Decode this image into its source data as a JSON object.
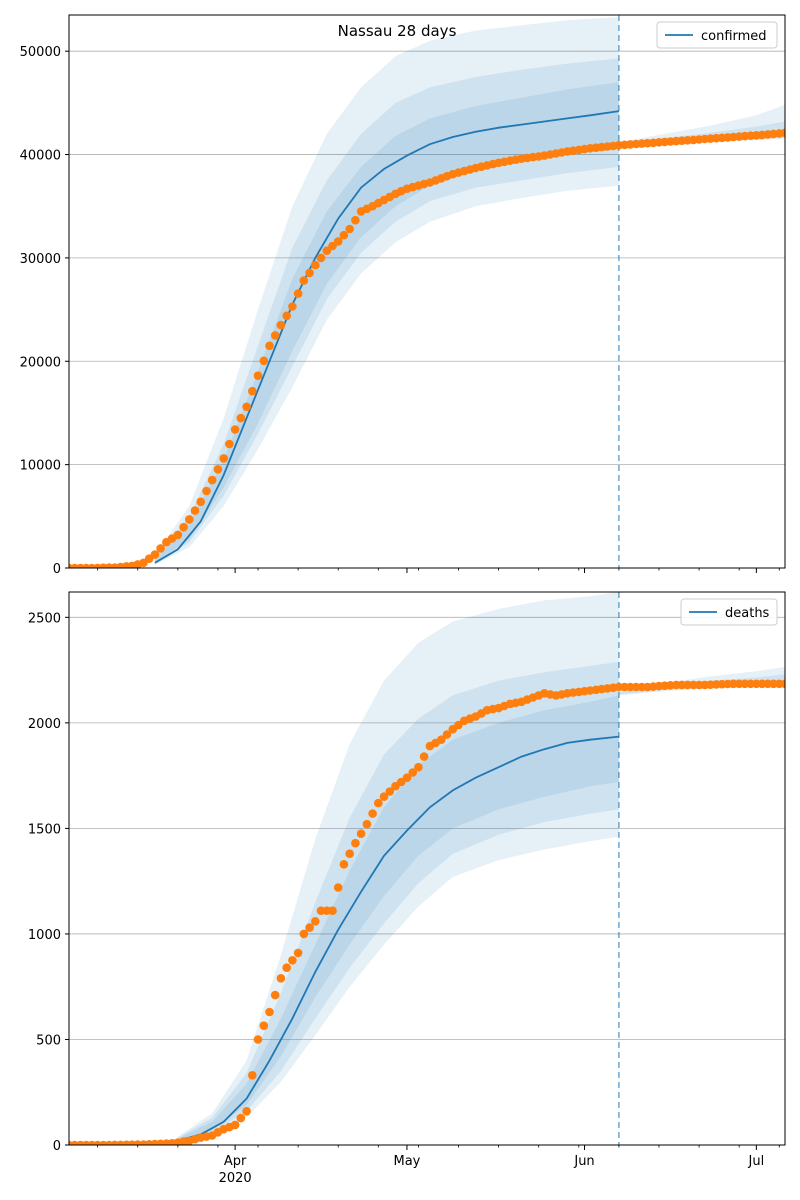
{
  "figure_title": "Nassau 28 days",
  "colors": {
    "model": "#1f77b4",
    "observed": "#ff7f0e",
    "band": "#1f77b4",
    "grid": "#b0b0b0",
    "forecast_line": "#1f77b4"
  },
  "forecast_start": "2020-06-07",
  "chart_data": [
    {
      "type": "line",
      "legend": "confirmed",
      "legend_position": "top-right",
      "grid": "y-only",
      "xlim": [
        "2020-03-03",
        "2020-07-06"
      ],
      "ylim": [
        0,
        53500
      ],
      "y_ticks": [
        0,
        10000,
        20000,
        30000,
        40000,
        50000
      ],
      "x_major_ticks": [
        {
          "date": "2020-04-01",
          "label": "Apr",
          "sublabel": "2020"
        },
        {
          "date": "2020-05-01",
          "label": "May"
        },
        {
          "date": "2020-06-01",
          "label": "Jun"
        },
        {
          "date": "2020-07-01",
          "label": "Jul"
        }
      ],
      "model_median": {
        "x": [
          "2020-03-18",
          "2020-03-22",
          "2020-03-26",
          "2020-03-30",
          "2020-04-03",
          "2020-04-07",
          "2020-04-11",
          "2020-04-15",
          "2020-04-19",
          "2020-04-23",
          "2020-04-27",
          "2020-05-01",
          "2020-05-05",
          "2020-05-09",
          "2020-05-13",
          "2020-05-17",
          "2020-05-21",
          "2020-05-25",
          "2020-05-29",
          "2020-06-02",
          "2020-06-07"
        ],
        "y": [
          500,
          1800,
          4500,
          9000,
          14500,
          20000,
          25500,
          30000,
          33800,
          36800,
          38600,
          39900,
          41000,
          41700,
          42200,
          42600,
          42900,
          43200,
          43500,
          43800,
          44200
        ]
      },
      "bands": [
        {
          "name": "90%",
          "x": [
            "2020-03-18",
            "2020-03-24",
            "2020-03-30",
            "2020-04-05",
            "2020-04-11",
            "2020-04-17",
            "2020-04-23",
            "2020-04-29",
            "2020-05-05",
            "2020-05-13",
            "2020-05-21",
            "2020-05-29",
            "2020-06-07"
          ],
          "lower": [
            300,
            2000,
            6000,
            11500,
            17500,
            24000,
            28500,
            31500,
            33500,
            35000,
            35800,
            36500,
            37000
          ],
          "upper": [
            1200,
            6000,
            14500,
            25000,
            35000,
            42000,
            46500,
            49500,
            51000,
            52000,
            52500,
            53000,
            53300
          ]
        },
        {
          "name": "70%",
          "x": [
            "2020-03-18",
            "2020-03-24",
            "2020-03-30",
            "2020-04-05",
            "2020-04-11",
            "2020-04-17",
            "2020-04-23",
            "2020-04-29",
            "2020-05-05",
            "2020-05-13",
            "2020-05-21",
            "2020-05-29",
            "2020-06-07"
          ],
          "lower": [
            400,
            2500,
            7000,
            13000,
            19500,
            26000,
            30500,
            33500,
            35500,
            36800,
            37500,
            38200,
            38800
          ],
          "upper": [
            900,
            5000,
            12000,
            21500,
            31000,
            37500,
            42000,
            45000,
            46500,
            47500,
            48200,
            48800,
            49300
          ]
        },
        {
          "name": "50%",
          "x": [
            "2020-03-18",
            "2020-03-24",
            "2020-03-30",
            "2020-04-05",
            "2020-04-11",
            "2020-04-17",
            "2020-04-23",
            "2020-04-29",
            "2020-05-05",
            "2020-05-13",
            "2020-05-21",
            "2020-05-29",
            "2020-06-07"
          ],
          "lower": [
            450,
            2800,
            7800,
            14000,
            21000,
            27500,
            32000,
            35000,
            37000,
            38500,
            39300,
            40000,
            40500
          ],
          "upper": [
            750,
            4300,
            10500,
            19000,
            28000,
            34500,
            38800,
            41800,
            43500,
            44700,
            45500,
            46300,
            47000
          ]
        }
      ],
      "future_band": {
        "x": [
          "2020-06-07",
          "2020-06-15",
          "2020-06-23",
          "2020-07-01",
          "2020-07-06"
        ],
        "lower": [
          40800,
          41000,
          41200,
          41400,
          41500
        ],
        "upper": [
          41200,
          42000,
          42800,
          43800,
          44800
        ]
      },
      "future_band_inner": {
        "x": [
          "2020-06-07",
          "2020-06-15",
          "2020-06-23",
          "2020-07-01",
          "2020-07-06"
        ],
        "lower": [
          40900,
          41100,
          41300,
          41500,
          41600
        ],
        "upper": [
          41100,
          41600,
          42100,
          42700,
          43200
        ]
      },
      "observed": {
        "x": [
          "2020-03-03",
          "2020-03-07",
          "2020-03-11",
          "2020-03-14",
          "2020-03-16",
          "2020-03-18",
          "2020-03-20",
          "2020-03-22",
          "2020-03-24",
          "2020-03-26",
          "2020-03-28",
          "2020-03-30",
          "2020-04-01",
          "2020-04-03",
          "2020-04-05",
          "2020-04-07",
          "2020-04-09",
          "2020-04-11",
          "2020-04-13",
          "2020-04-15",
          "2020-04-17",
          "2020-04-19",
          "2020-04-21",
          "2020-04-23",
          "2020-04-25",
          "2020-04-27",
          "2020-04-29",
          "2020-05-01",
          "2020-05-05",
          "2020-05-09",
          "2020-05-13",
          "2020-05-17",
          "2020-05-21",
          "2020-05-25",
          "2020-05-29",
          "2020-06-02",
          "2020-06-07",
          "2020-06-12",
          "2020-06-17",
          "2020-06-22",
          "2020-06-27",
          "2020-07-02",
          "2020-07-06"
        ],
        "y": [
          0,
          0,
          50,
          200,
          500,
          1300,
          2500,
          3200,
          4700,
          6400,
          8500,
          10600,
          13400,
          15600,
          18600,
          21500,
          23500,
          25300,
          27800,
          29300,
          30700,
          31600,
          32800,
          34500,
          35000,
          35600,
          36200,
          36700,
          37300,
          38100,
          38700,
          39200,
          39600,
          39900,
          40300,
          40600,
          40900,
          41100,
          41300,
          41500,
          41700,
          41900,
          42100
        ]
      }
    },
    {
      "type": "line",
      "legend": "deaths",
      "legend_position": "top-right",
      "grid": "y-only",
      "xlim": [
        "2020-03-03",
        "2020-07-06"
      ],
      "ylim": [
        0,
        2620
      ],
      "y_ticks": [
        0,
        500,
        1000,
        1500,
        2000,
        2500
      ],
      "x_major_ticks": [
        {
          "date": "2020-04-01",
          "label": "Apr",
          "sublabel": "2020"
        },
        {
          "date": "2020-05-01",
          "label": "May"
        },
        {
          "date": "2020-06-01",
          "label": "Jun"
        },
        {
          "date": "2020-07-01",
          "label": "Jul"
        }
      ],
      "model_median": {
        "x": [
          "2020-03-22",
          "2020-03-26",
          "2020-03-30",
          "2020-04-03",
          "2020-04-07",
          "2020-04-11",
          "2020-04-15",
          "2020-04-19",
          "2020-04-23",
          "2020-04-27",
          "2020-05-01",
          "2020-05-05",
          "2020-05-09",
          "2020-05-13",
          "2020-05-17",
          "2020-05-21",
          "2020-05-25",
          "2020-05-29",
          "2020-06-02",
          "2020-06-07"
        ],
        "y": [
          20,
          50,
          110,
          220,
          400,
          600,
          820,
          1020,
          1200,
          1370,
          1490,
          1600,
          1680,
          1740,
          1790,
          1840,
          1875,
          1905,
          1920,
          1935
        ]
      },
      "bands": [
        {
          "name": "90%",
          "x": [
            "2020-03-22",
            "2020-03-28",
            "2020-04-03",
            "2020-04-09",
            "2020-04-15",
            "2020-04-21",
            "2020-04-27",
            "2020-05-03",
            "2020-05-09",
            "2020-05-17",
            "2020-05-25",
            "2020-06-02",
            "2020-06-07"
          ],
          "lower": [
            10,
            50,
            130,
            300,
            520,
            750,
            950,
            1130,
            1270,
            1350,
            1400,
            1440,
            1460
          ],
          "upper": [
            40,
            150,
            400,
            900,
            1450,
            1900,
            2200,
            2380,
            2480,
            2540,
            2580,
            2600,
            2620
          ]
        },
        {
          "name": "70%",
          "x": [
            "2020-03-22",
            "2020-03-28",
            "2020-04-03",
            "2020-04-09",
            "2020-04-15",
            "2020-04-21",
            "2020-04-27",
            "2020-05-03",
            "2020-05-09",
            "2020-05-17",
            "2020-05-25",
            "2020-06-02",
            "2020-06-07"
          ],
          "lower": [
            15,
            60,
            160,
            350,
            600,
            840,
            1050,
            1240,
            1380,
            1470,
            1530,
            1570,
            1590
          ],
          "upper": [
            35,
            130,
            340,
            720,
            1150,
            1550,
            1850,
            2020,
            2130,
            2200,
            2240,
            2270,
            2290
          ]
        },
        {
          "name": "50%",
          "x": [
            "2020-03-22",
            "2020-03-28",
            "2020-04-03",
            "2020-04-09",
            "2020-04-15",
            "2020-04-21",
            "2020-04-27",
            "2020-05-03",
            "2020-05-09",
            "2020-05-17",
            "2020-05-25",
            "2020-06-02",
            "2020-06-07"
          ],
          "lower": [
            18,
            70,
            190,
            420,
            700,
            950,
            1180,
            1370,
            1500,
            1590,
            1650,
            1700,
            1720
          ],
          "upper": [
            30,
            110,
            290,
            600,
            950,
            1300,
            1600,
            1800,
            1920,
            2000,
            2060,
            2100,
            2130
          ]
        }
      ],
      "future_band": {
        "x": [
          "2020-06-07",
          "2020-06-15",
          "2020-06-23",
          "2020-07-01",
          "2020-07-06"
        ],
        "lower": [
          2130,
          2150,
          2165,
          2170,
          2175
        ],
        "upper": [
          2150,
          2190,
          2220,
          2245,
          2265
        ]
      },
      "future_band_inner": {
        "x": [
          "2020-06-07",
          "2020-06-15",
          "2020-06-23",
          "2020-07-01",
          "2020-07-06"
        ],
        "lower": [
          2135,
          2155,
          2170,
          2175,
          2180
        ],
        "upper": [
          2145,
          2175,
          2200,
          2215,
          2230
        ]
      },
      "observed": {
        "x": [
          "2020-03-03",
          "2020-03-10",
          "2020-03-16",
          "2020-03-21",
          "2020-03-24",
          "2020-03-26",
          "2020-03-28",
          "2020-03-30",
          "2020-04-01",
          "2020-04-03",
          "2020-04-05",
          "2020-04-07",
          "2020-04-09",
          "2020-04-10",
          "2020-04-12",
          "2020-04-13",
          "2020-04-15",
          "2020-04-16",
          "2020-04-17",
          "2020-04-18",
          "2020-04-20",
          "2020-04-22",
          "2020-04-24",
          "2020-04-26",
          "2020-04-27",
          "2020-04-29",
          "2020-05-01",
          "2020-05-03",
          "2020-05-05",
          "2020-05-07",
          "2020-05-09",
          "2020-05-11",
          "2020-05-13",
          "2020-05-15",
          "2020-05-17",
          "2020-05-19",
          "2020-05-21",
          "2020-05-23",
          "2020-05-25",
          "2020-05-27",
          "2020-05-29",
          "2020-06-01",
          "2020-06-04",
          "2020-06-07",
          "2020-06-12",
          "2020-06-17",
          "2020-06-22",
          "2020-06-27",
          "2020-07-02",
          "2020-07-06"
        ],
        "y": [
          0,
          0,
          2,
          8,
          20,
          35,
          45,
          75,
          95,
          160,
          500,
          630,
          790,
          840,
          910,
          1000,
          1060,
          1110,
          1110,
          1110,
          1330,
          1430,
          1520,
          1620,
          1650,
          1700,
          1740,
          1790,
          1890,
          1920,
          1970,
          2010,
          2030,
          2060,
          2070,
          2090,
          2100,
          2120,
          2140,
          2130,
          2140,
          2150,
          2160,
          2170,
          2170,
          2180,
          2180,
          2185,
          2185,
          2185
        ]
      }
    }
  ]
}
